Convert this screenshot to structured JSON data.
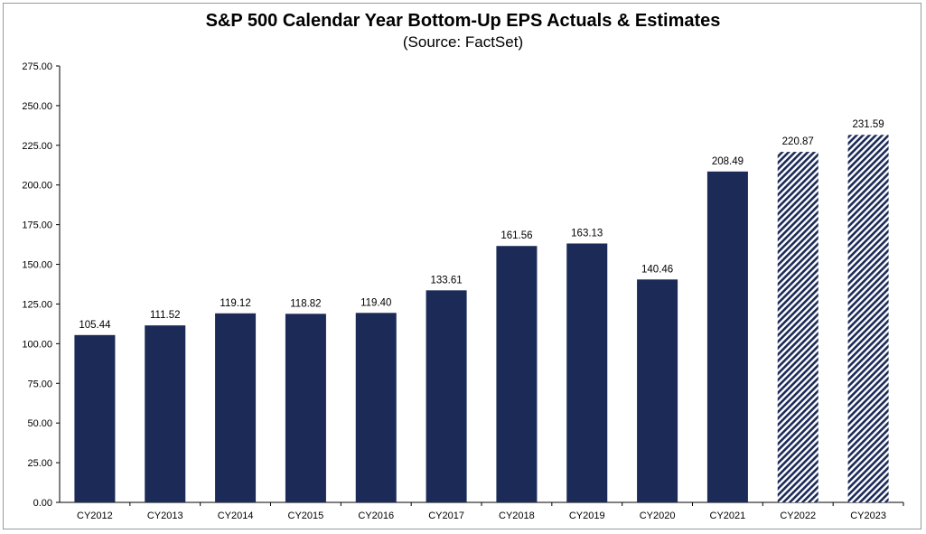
{
  "chart_data": {
    "type": "bar",
    "title": "S&P 500 Calendar Year Bottom-Up EPS Actuals & Estimates",
    "subtitle": "(Source: FactSet)",
    "xlabel": "",
    "ylabel": "",
    "categories": [
      "CY2012",
      "CY2013",
      "CY2014",
      "CY2015",
      "CY2016",
      "CY2017",
      "CY2018",
      "CY2019",
      "CY2020",
      "CY2021",
      "CY2022",
      "CY2023"
    ],
    "values": [
      105.44,
      111.52,
      119.12,
      118.82,
      119.4,
      133.61,
      161.56,
      163.13,
      140.46,
      208.49,
      220.87,
      231.59
    ],
    "value_labels": [
      "105.44",
      "111.52",
      "119.12",
      "118.82",
      "119.40",
      "133.61",
      "161.56",
      "163.13",
      "140.46",
      "208.49",
      "220.87",
      "231.59"
    ],
    "estimate_flags": [
      false,
      false,
      false,
      false,
      false,
      false,
      false,
      false,
      false,
      false,
      true,
      true
    ],
    "ylim": [
      0,
      275
    ],
    "yticks": [
      "0.00",
      "25.00",
      "50.00",
      "75.00",
      "100.00",
      "125.00",
      "150.00",
      "175.00",
      "200.00",
      "225.00",
      "250.00",
      "275.00"
    ],
    "grid": false,
    "legend": "none",
    "colors": {
      "actual": "#1b2a57",
      "estimate_stripe": "#1b2a57",
      "estimate_bg": "#ffffff",
      "axis": "#000000"
    }
  }
}
